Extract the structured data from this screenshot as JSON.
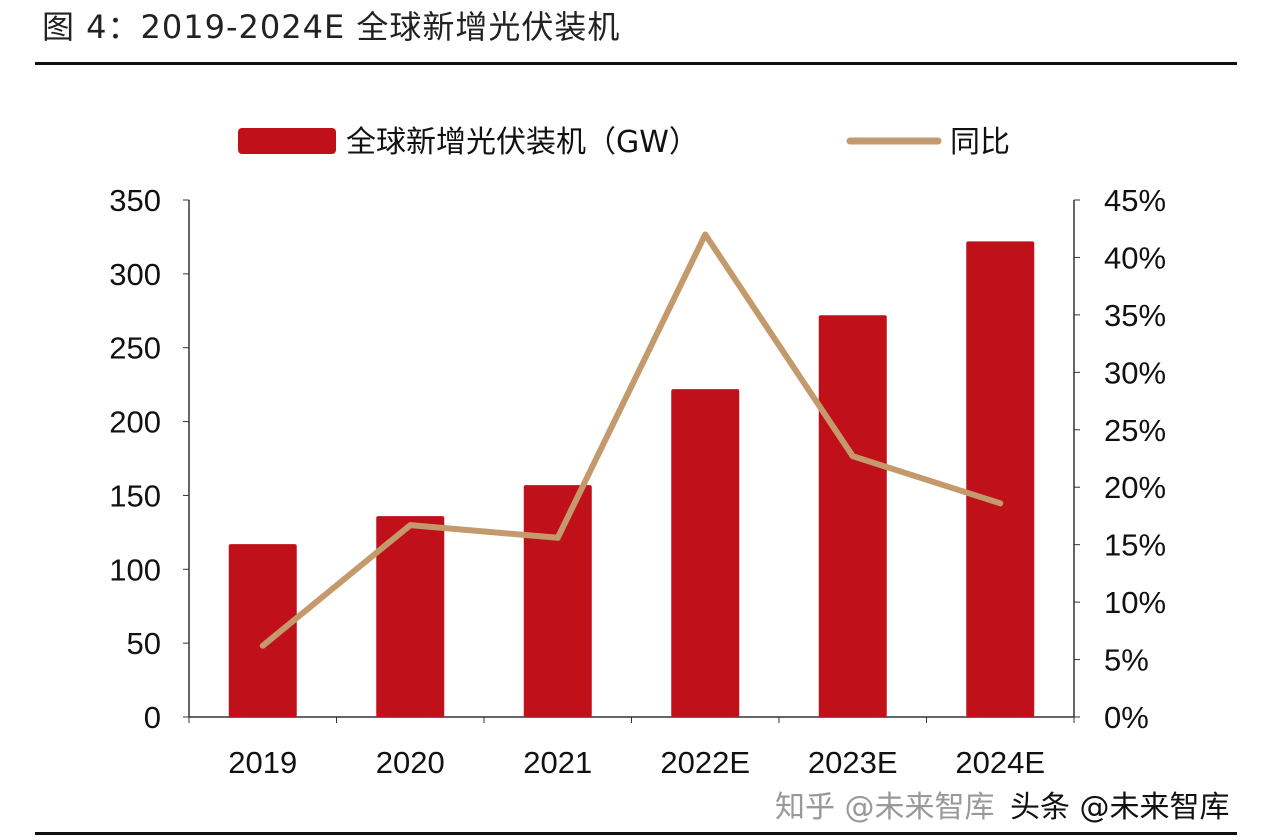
{
  "title": "图 4：2019-2024E 全球新增光伏装机",
  "watermarks": [
    "知乎 @未来智库",
    "头条 @未来智库"
  ],
  "chart_data": {
    "type": "bar+line",
    "categories": [
      "2019",
      "2020",
      "2021",
      "2022E",
      "2023E",
      "2024E"
    ],
    "series": [
      {
        "name": "全球新增光伏装机（GW）",
        "type": "bar",
        "axis": "left",
        "color": "#c0111a",
        "values": [
          117,
          136,
          157,
          222,
          272,
          322
        ]
      },
      {
        "name": "同比",
        "type": "line",
        "axis": "right",
        "color": "#c49a6c",
        "values": [
          6.2,
          16.7,
          15.6,
          42.0,
          22.7,
          18.6
        ]
      }
    ],
    "left_axis": {
      "min": 0,
      "max": 350,
      "ticks": [
        "0",
        "50",
        "100",
        "150",
        "200",
        "250",
        "300",
        "350"
      ]
    },
    "right_axis": {
      "min": 0,
      "max": 45,
      "ticks": [
        "0%",
        "5%",
        "10%",
        "15%",
        "20%",
        "25%",
        "30%",
        "35%",
        "40%",
        "45%"
      ]
    },
    "legend_position": "top",
    "grid": false
  }
}
